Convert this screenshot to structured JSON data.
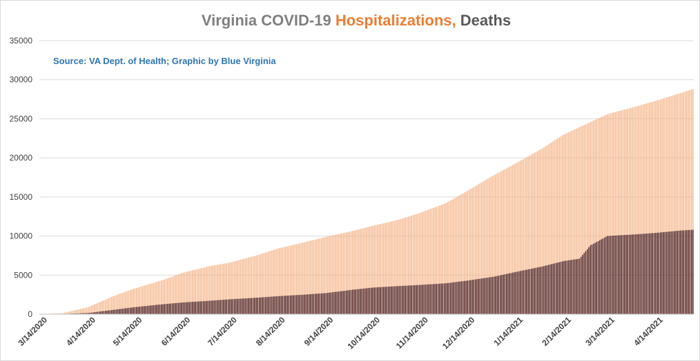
{
  "chart_data": {
    "type": "bar",
    "title_parts": [
      {
        "text": "Virginia COVID-19 ",
        "color": "#7f7f7f"
      },
      {
        "text": "Hospitalizations,",
        "color": "#ed7d31"
      },
      {
        "text": " Deaths",
        "color": "#595959"
      }
    ],
    "source": "Source: VA Dept. of Health; Graphic by Blue Virginia",
    "source_color": "#2e75b6",
    "ylim": [
      0,
      35000
    ],
    "yticks": [
      0,
      5000,
      10000,
      15000,
      20000,
      25000,
      30000,
      35000
    ],
    "x_tick_labels": [
      "3/14/2020",
      "4/14/2020",
      "5/14/2020",
      "6/14/2020",
      "7/14/2020",
      "8/14/2020",
      "9/14/2020",
      "10/14/2020",
      "11/14/2020",
      "12/14/2020",
      "1/14/2021",
      "2/14/2021",
      "3/14/2021",
      "4/14/2021"
    ],
    "grid": true,
    "series": [
      {
        "name": "Hospitalizations",
        "color": "#f4b183",
        "points": [
          [
            "3/14/2020",
            0
          ],
          [
            "3/28/2020",
            100
          ],
          [
            "4/14/2020",
            900
          ],
          [
            "4/30/2020",
            2300
          ],
          [
            "5/14/2020",
            3300
          ],
          [
            "5/31/2020",
            4300
          ],
          [
            "6/14/2020",
            5300
          ],
          [
            "6/30/2020",
            6100
          ],
          [
            "7/14/2020",
            6600
          ],
          [
            "7/31/2020",
            7500
          ],
          [
            "8/14/2020",
            8400
          ],
          [
            "8/31/2020",
            9200
          ],
          [
            "9/14/2020",
            9900
          ],
          [
            "9/30/2020",
            10600
          ],
          [
            "10/14/2020",
            11300
          ],
          [
            "10/31/2020",
            12100
          ],
          [
            "11/14/2020",
            13000
          ],
          [
            "11/30/2020",
            14200
          ],
          [
            "12/14/2020",
            15800
          ],
          [
            "12/31/2020",
            17800
          ],
          [
            "1/14/2021",
            19300
          ],
          [
            "1/31/2021",
            21200
          ],
          [
            "2/14/2021",
            23000
          ],
          [
            "2/28/2021",
            24300
          ],
          [
            "3/14/2021",
            25600
          ],
          [
            "3/31/2021",
            26500
          ],
          [
            "4/14/2021",
            27300
          ],
          [
            "4/30/2021",
            28300
          ],
          [
            "5/8/2021",
            28800
          ]
        ]
      },
      {
        "name": "Deaths",
        "color": "#3d0c0c",
        "points": [
          [
            "3/14/2020",
            0
          ],
          [
            "3/28/2020",
            20
          ],
          [
            "4/14/2020",
            150
          ],
          [
            "4/30/2020",
            550
          ],
          [
            "5/14/2020",
            900
          ],
          [
            "5/31/2020",
            1250
          ],
          [
            "6/14/2020",
            1500
          ],
          [
            "6/30/2020",
            1700
          ],
          [
            "7/14/2020",
            1900
          ],
          [
            "7/31/2020",
            2100
          ],
          [
            "8/14/2020",
            2300
          ],
          [
            "8/31/2020",
            2500
          ],
          [
            "9/14/2020",
            2700
          ],
          [
            "9/30/2020",
            3100
          ],
          [
            "10/14/2020",
            3400
          ],
          [
            "10/31/2020",
            3600
          ],
          [
            "11/14/2020",
            3750
          ],
          [
            "11/30/2020",
            3950
          ],
          [
            "12/14/2020",
            4300
          ],
          [
            "12/31/2020",
            4800
          ],
          [
            "1/14/2021",
            5400
          ],
          [
            "1/31/2021",
            6100
          ],
          [
            "2/14/2021",
            6800
          ],
          [
            "2/24/2021",
            7100
          ],
          [
            "3/3/2021",
            8800
          ],
          [
            "3/14/2021",
            10000
          ],
          [
            "3/31/2021",
            10200
          ],
          [
            "4/14/2021",
            10400
          ],
          [
            "4/30/2021",
            10700
          ],
          [
            "5/8/2021",
            10800
          ]
        ]
      }
    ]
  },
  "colors": {
    "axis": "#bfbfbf",
    "gridline": "#d9d9d9"
  }
}
